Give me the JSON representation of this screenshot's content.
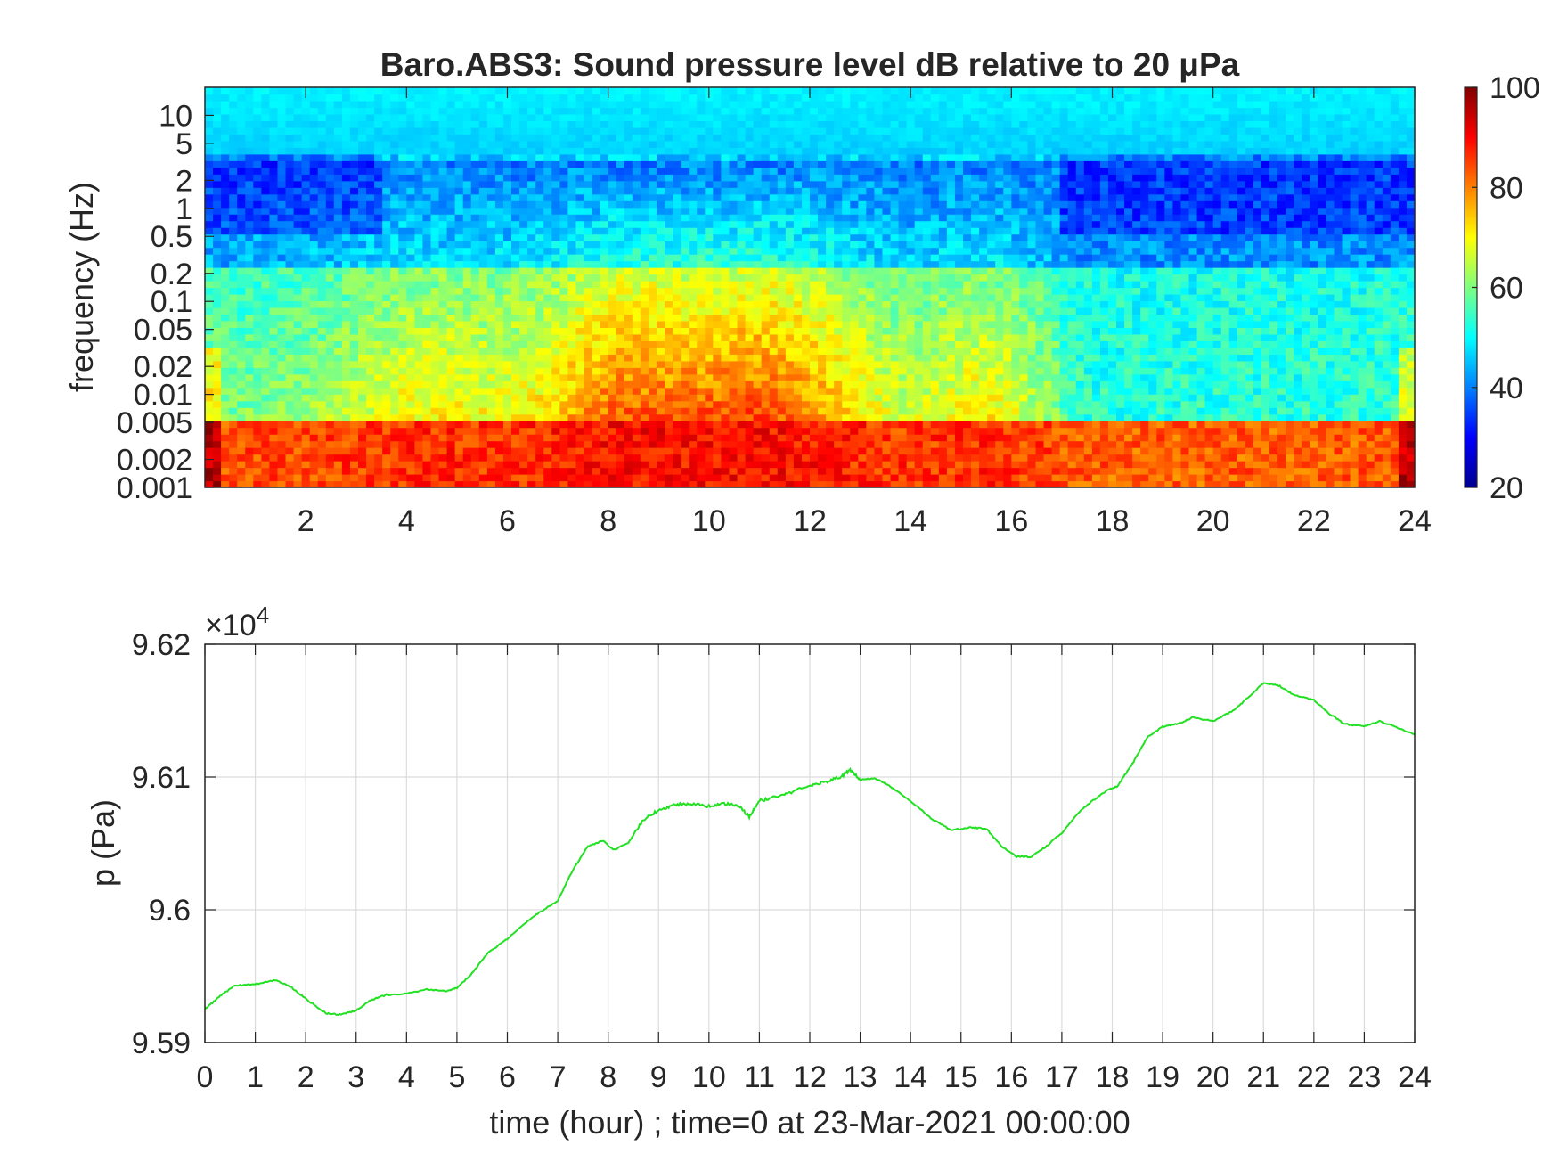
{
  "figure": {
    "spectrogram": {
      "type": "heatmap",
      "title": "Baro.ABS3: Sound pressure level dB relative to 20 μPa",
      "ylabel": "frequency (Hz)",
      "xlabel": "",
      "xlim": [
        0,
        24
      ],
      "x_ticks": [
        2,
        4,
        6,
        8,
        10,
        12,
        14,
        16,
        18,
        20,
        22,
        24
      ],
      "y_scale": "log",
      "ylim": [
        0.001,
        20
      ],
      "y_ticks": [
        0.001,
        0.002,
        0.005,
        0.01,
        0.02,
        0.05,
        0.1,
        0.2,
        0.5,
        1,
        2,
        5,
        10
      ],
      "y_tick_labels": [
        "0.001",
        "0.002",
        "0.005",
        "0.01",
        "0.02",
        "0.05",
        "0.1",
        "0.2",
        "0.5",
        "1",
        "2",
        "5",
        "10"
      ],
      "colormap": "jet",
      "colorbar": {
        "range": [
          20,
          100
        ],
        "ticks": [
          20,
          40,
          60,
          80,
          100
        ]
      }
    },
    "pressure": {
      "type": "line",
      "exponent_label": "×10",
      "exponent_power": "4",
      "xlabel": "time (hour) ; time=0 at 23-Mar-2021 00:00:00",
      "ylabel": "p (Pa)",
      "xlim": [
        0,
        24
      ],
      "ylim": [
        9.59,
        9.62
      ],
      "x_ticks": [
        0,
        1,
        2,
        3,
        4,
        5,
        6,
        7,
        8,
        9,
        10,
        11,
        12,
        13,
        14,
        15,
        16,
        17,
        18,
        19,
        20,
        21,
        22,
        23,
        24
      ],
      "y_ticks": [
        9.59,
        9.6,
        9.61,
        9.62
      ],
      "y_tick_labels": [
        "9.59",
        "9.6",
        "9.61",
        "9.62"
      ],
      "grid": true,
      "line_color": "#22e022",
      "series": [
        {
          "x": [
            0,
            0.3,
            0.6,
            1.0,
            1.4,
            1.7,
            2.0,
            2.4,
            2.7,
            3.0,
            3.3,
            3.6,
            4.0,
            4.4,
            4.8,
            5.0,
            5.3,
            5.6,
            6.0,
            6.3,
            6.6,
            7.0,
            7.3,
            7.6,
            7.9,
            8.1,
            8.4,
            8.7,
            9.0,
            9.3,
            9.6,
            10.0,
            10.3,
            10.6,
            10.8,
            11.0,
            11.3,
            11.6,
            12.0,
            12.3,
            12.6,
            12.8,
            13.0,
            13.3,
            13.6,
            14.0,
            14.4,
            14.8,
            15.2,
            15.5,
            15.8,
            16.1,
            16.4,
            16.7,
            17.0,
            17.3,
            17.6,
            17.9,
            18.1,
            18.4,
            18.7,
            19.0,
            19.3,
            19.6,
            20.0,
            20.4,
            20.7,
            21.0,
            21.3,
            21.6,
            22.0,
            22.3,
            22.6,
            23.0,
            23.3,
            23.6,
            24.0
          ],
          "y": [
            9.5925,
            9.5935,
            9.5943,
            9.5944,
            9.5947,
            9.5942,
            9.5933,
            9.5922,
            9.5921,
            9.5924,
            9.5932,
            9.5936,
            9.5937,
            9.594,
            9.5939,
            9.5941,
            9.5952,
            9.5967,
            9.5978,
            9.5988,
            9.5997,
            9.6007,
            9.603,
            9.6048,
            9.6052,
            9.6045,
            9.605,
            9.6068,
            9.6075,
            9.6079,
            9.608,
            9.6078,
            9.608,
            9.6078,
            9.607,
            9.6082,
            9.6085,
            9.6088,
            9.6094,
            9.6096,
            9.61,
            9.6105,
            9.6098,
            9.6099,
            9.6093,
            9.6082,
            9.6069,
            9.606,
            9.6062,
            9.6061,
            9.6048,
            9.604,
            9.604,
            9.6048,
            9.6058,
            9.6072,
            9.6082,
            9.609,
            9.6093,
            9.611,
            9.613,
            9.6138,
            9.614,
            9.6145,
            9.6142,
            9.615,
            9.616,
            9.6171,
            9.6169,
            9.6162,
            9.6158,
            9.6148,
            9.614,
            9.6138,
            9.6142,
            9.6138,
            9.6132
          ]
        }
      ]
    }
  }
}
